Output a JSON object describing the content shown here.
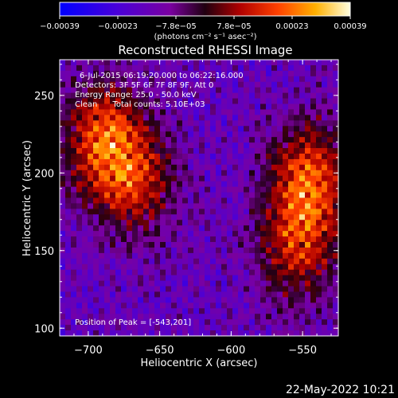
{
  "chart_data": {
    "type": "heatmap",
    "title": "Reconstructed RHESSI Image",
    "xlabel": "Heliocentric X (arcsec)",
    "ylabel": "Heliocentric Y (arcsec)",
    "xlim": [
      -720,
      -525
    ],
    "ylim": [
      95,
      273
    ],
    "x_ticks": [
      -700,
      -650,
      -600,
      -550
    ],
    "y_ticks": [
      100,
      150,
      200,
      250
    ],
    "x_tick_labels": [
      "−700",
      "−650",
      "−600",
      "−550"
    ],
    "y_tick_labels": [
      "100",
      "150",
      "200",
      "250"
    ],
    "colorbar": {
      "range": [
        -0.00039,
        0.00039
      ],
      "tick_labels": [
        "−0.00039",
        "−0.00023",
        "−7.8e−05",
        "7.8e−05",
        "0.00023",
        "0.00039"
      ],
      "unit_label": "(photons cm⁻² s⁻¹ asec⁻²)",
      "colormap": "blue-purple-red-yellow-white"
    },
    "info_lines": [
      "6-Jul-2015 06:19:20.000 to 06:22:16.000",
      "Detectors: 3F 5F 6F 7F 8F 9F, Att 0",
      "Energy Range: 25.0 - 50.0 keV",
      "Clean      Total counts: 5.10E+03"
    ],
    "peak_label": "Position of Peak = [-543,201]",
    "peak": [
      -543,
      201
    ],
    "sources": [
      {
        "x": -690,
        "y": 220,
        "weight": 1.0
      },
      {
        "x": -665,
        "y": 195,
        "weight": 0.7
      },
      {
        "x": -545,
        "y": 195,
        "weight": 1.0
      },
      {
        "x": -555,
        "y": 150,
        "weight": 0.7
      }
    ]
  },
  "footer": {
    "timestamp": "22-May-2022 10:21"
  }
}
